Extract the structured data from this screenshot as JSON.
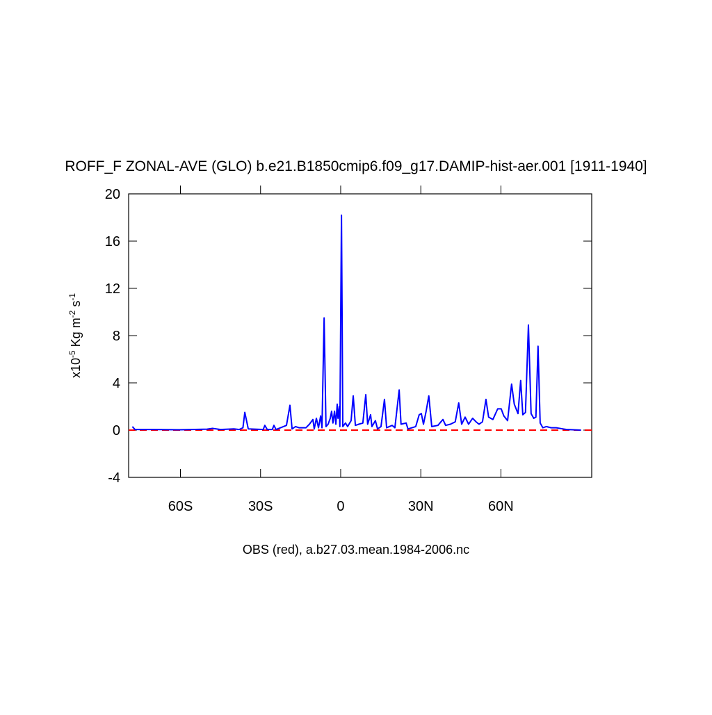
{
  "chart_data": {
    "type": "line",
    "title": "ROFF_F ZONAL-AVE (GLO) b.e21.B1850cmip6.f09_g17.DAMIP-hist-aer.001 [1911-1940]",
    "xlabel": "OBS (red), a.b27.03.mean.1984-2006.nc",
    "ylabel": [
      "x10",
      "-5",
      " Kg m",
      "-2",
      " s",
      "-1"
    ],
    "xlim": [
      -79.4,
      94
    ],
    "ylim": [
      -4,
      20
    ],
    "xticks": [
      {
        "value": -60,
        "label": "60S"
      },
      {
        "value": -30,
        "label": "30S"
      },
      0,
      {
        "value": 30,
        "label": "30N"
      },
      {
        "value": 60,
        "label": "60N"
      }
    ],
    "yticks": [
      -4,
      0,
      4,
      8,
      12,
      16,
      20
    ],
    "series": [
      {
        "color": "#0000ff",
        "dashed": false,
        "x": [
          -78,
          -77,
          -70,
          -60,
          -50,
          -48,
          -45,
          -40,
          -38,
          -36.6,
          -35.9,
          -34.6,
          -29,
          -28.4,
          -27.5,
          -25.6,
          -25,
          -24.2,
          -20.3,
          -19,
          -18.2,
          -16.9,
          -15.6,
          -13,
          -11.7,
          -10.4,
          -9.9,
          -9.1,
          -8.3,
          -7.5,
          -7,
          -6.2,
          -5.5,
          -4.7,
          -3.9,
          -3.4,
          -2.9,
          -2.3,
          -1.8,
          -1.3,
          -1,
          -0.5,
          -0.3,
          0.3,
          0.8,
          1.8,
          2.6,
          3.9,
          4.7,
          5.5,
          6.8,
          8.3,
          9.4,
          10.1,
          11.2,
          11.7,
          13,
          13.8,
          15.1,
          16.4,
          17.2,
          19.3,
          20.3,
          21.9,
          22.6,
          24.5,
          25.2,
          28.1,
          29.4,
          30.2,
          31,
          32,
          33,
          34.1,
          36.4,
          38.3,
          39.3,
          41.1,
          42.9,
          44.2,
          45.3,
          46.6,
          47.9,
          49.4,
          50.7,
          51.8,
          53.1,
          54.4,
          55.4,
          57,
          58.8,
          60.1,
          61.1,
          62.5,
          64,
          65,
          66.4,
          67.4,
          68.2,
          69.2,
          70.3,
          71.3,
          72.3,
          73.1,
          73.9,
          74.7,
          75.7,
          77,
          78.8,
          80.7,
          83.3,
          84.6,
          90
        ],
        "values": [
          0.3,
          0.05,
          0.05,
          0.03,
          0.08,
          0.15,
          0.05,
          0.1,
          0.05,
          0.2,
          1.5,
          0.1,
          0.05,
          0.4,
          0.05,
          0.05,
          0.4,
          0.05,
          0.4,
          2.1,
          0.1,
          0.3,
          0.2,
          0.2,
          0.5,
          0.9,
          0.1,
          1.0,
          0.2,
          1.2,
          0.2,
          9.5,
          0.3,
          0.5,
          1.0,
          1.6,
          0.6,
          1.6,
          0.5,
          2.2,
          1.0,
          2.0,
          0.3,
          18.2,
          0.3,
          0.6,
          0.3,
          0.8,
          2.9,
          0.4,
          0.5,
          0.6,
          3.0,
          0.5,
          1.3,
          0.3,
          0.8,
          0.1,
          0.3,
          2.6,
          0.2,
          0.4,
          0.2,
          3.4,
          0.5,
          0.6,
          0.1,
          0.3,
          1.3,
          1.4,
          0.5,
          1.6,
          2.9,
          0.3,
          0.4,
          0.9,
          0.4,
          0.5,
          0.7,
          2.3,
          0.5,
          1.1,
          0.5,
          1.0,
          0.7,
          0.5,
          0.7,
          2.6,
          1.1,
          0.9,
          1.8,
          1.8,
          1.2,
          0.8,
          3.9,
          2.2,
          1.4,
          4.2,
          1.3,
          1.5,
          8.9,
          1.4,
          1.0,
          1.1,
          7.1,
          0.6,
          0.2,
          0.3,
          0.2,
          0.2,
          0.1,
          0.05,
          0
        ]
      },
      {
        "color": "#ff0000",
        "dashed": true,
        "x": [
          -79.4,
          94
        ],
        "values": [
          0,
          0
        ]
      }
    ]
  }
}
